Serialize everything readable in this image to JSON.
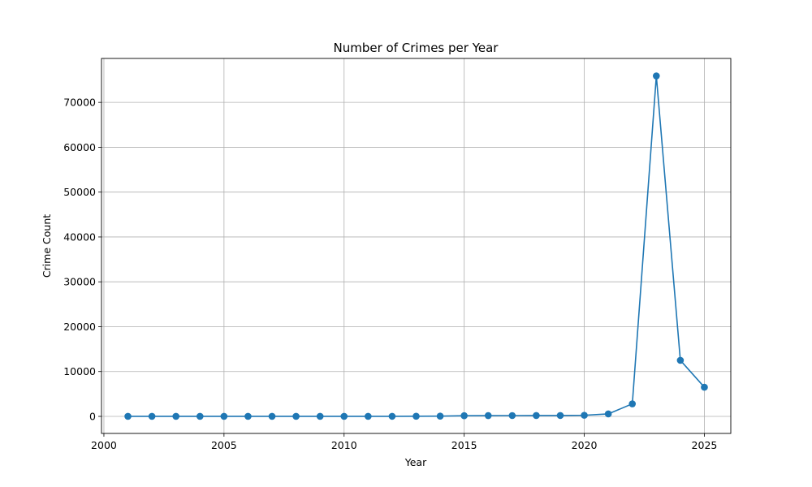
{
  "chart_data": {
    "type": "line",
    "title": "Number of Crimes per Year",
    "xlabel": "Year",
    "ylabel": "Crime Count",
    "xlim": [
      1999.9,
      2026.1
    ],
    "ylim": [
      -3800,
      79800
    ],
    "xticks": [
      2000,
      2005,
      2010,
      2015,
      2020,
      2025
    ],
    "xtick_labels": [
      "2000",
      "2005",
      "2010",
      "2015",
      "2020",
      "2025"
    ],
    "yticks": [
      0,
      10000,
      20000,
      30000,
      40000,
      50000,
      60000,
      70000
    ],
    "ytick_labels": [
      "0",
      "10000",
      "20000",
      "30000",
      "40000",
      "50000",
      "60000",
      "70000"
    ],
    "grid": true,
    "series": [
      {
        "color": "#1f77b4",
        "marker": "circle",
        "x": [
          2001,
          2002,
          2003,
          2004,
          2005,
          2006,
          2007,
          2008,
          2009,
          2010,
          2011,
          2012,
          2013,
          2014,
          2015,
          2016,
          2017,
          2018,
          2019,
          2020,
          2021,
          2022,
          2023,
          2024,
          2025
        ],
        "y": [
          10,
          10,
          10,
          10,
          10,
          10,
          10,
          10,
          10,
          10,
          10,
          20,
          30,
          60,
          150,
          170,
          180,
          190,
          200,
          250,
          550,
          2800,
          75900,
          12500,
          6500
        ]
      }
    ]
  }
}
